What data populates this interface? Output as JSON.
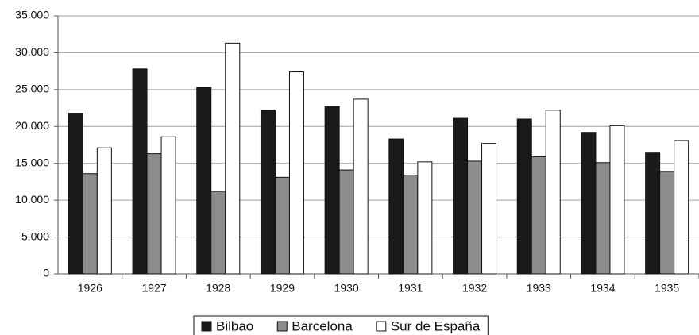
{
  "chart_data": {
    "type": "bar",
    "categories": [
      "1926",
      "1927",
      "1928",
      "1929",
      "1930",
      "1931",
      "1932",
      "1933",
      "1934",
      "1935"
    ],
    "series": [
      {
        "name": "Bilbao",
        "color": "#1a1a1a",
        "values": [
          21800,
          27800,
          25300,
          22200,
          22700,
          18300,
          21100,
          21000,
          19200,
          16400
        ]
      },
      {
        "name": "Barcelona",
        "color": "#8c8c8c",
        "values": [
          13600,
          16300,
          11200,
          13100,
          14100,
          13400,
          15300,
          15900,
          15100,
          13900
        ]
      },
      {
        "name": "Sur de España",
        "color": "#ffffff",
        "values": [
          17100,
          18600,
          31300,
          27400,
          23700,
          15200,
          17700,
          22200,
          20100,
          18100
        ]
      }
    ],
    "ylim": [
      0,
      35000
    ],
    "yticks": [
      0,
      {
        "value": 5000,
        "label": "5.000"
      },
      {
        "value": 10000,
        "label": "10.000"
      },
      {
        "value": 15000,
        "label": "15.000"
      },
      {
        "value": 20000,
        "label": "20.000"
      },
      {
        "value": 25000,
        "label": "25.000"
      },
      {
        "value": 30000,
        "label": "30.000"
      },
      {
        "value": 35000,
        "label": "35.000"
      }
    ],
    "grid": true,
    "legend": "bottom"
  }
}
